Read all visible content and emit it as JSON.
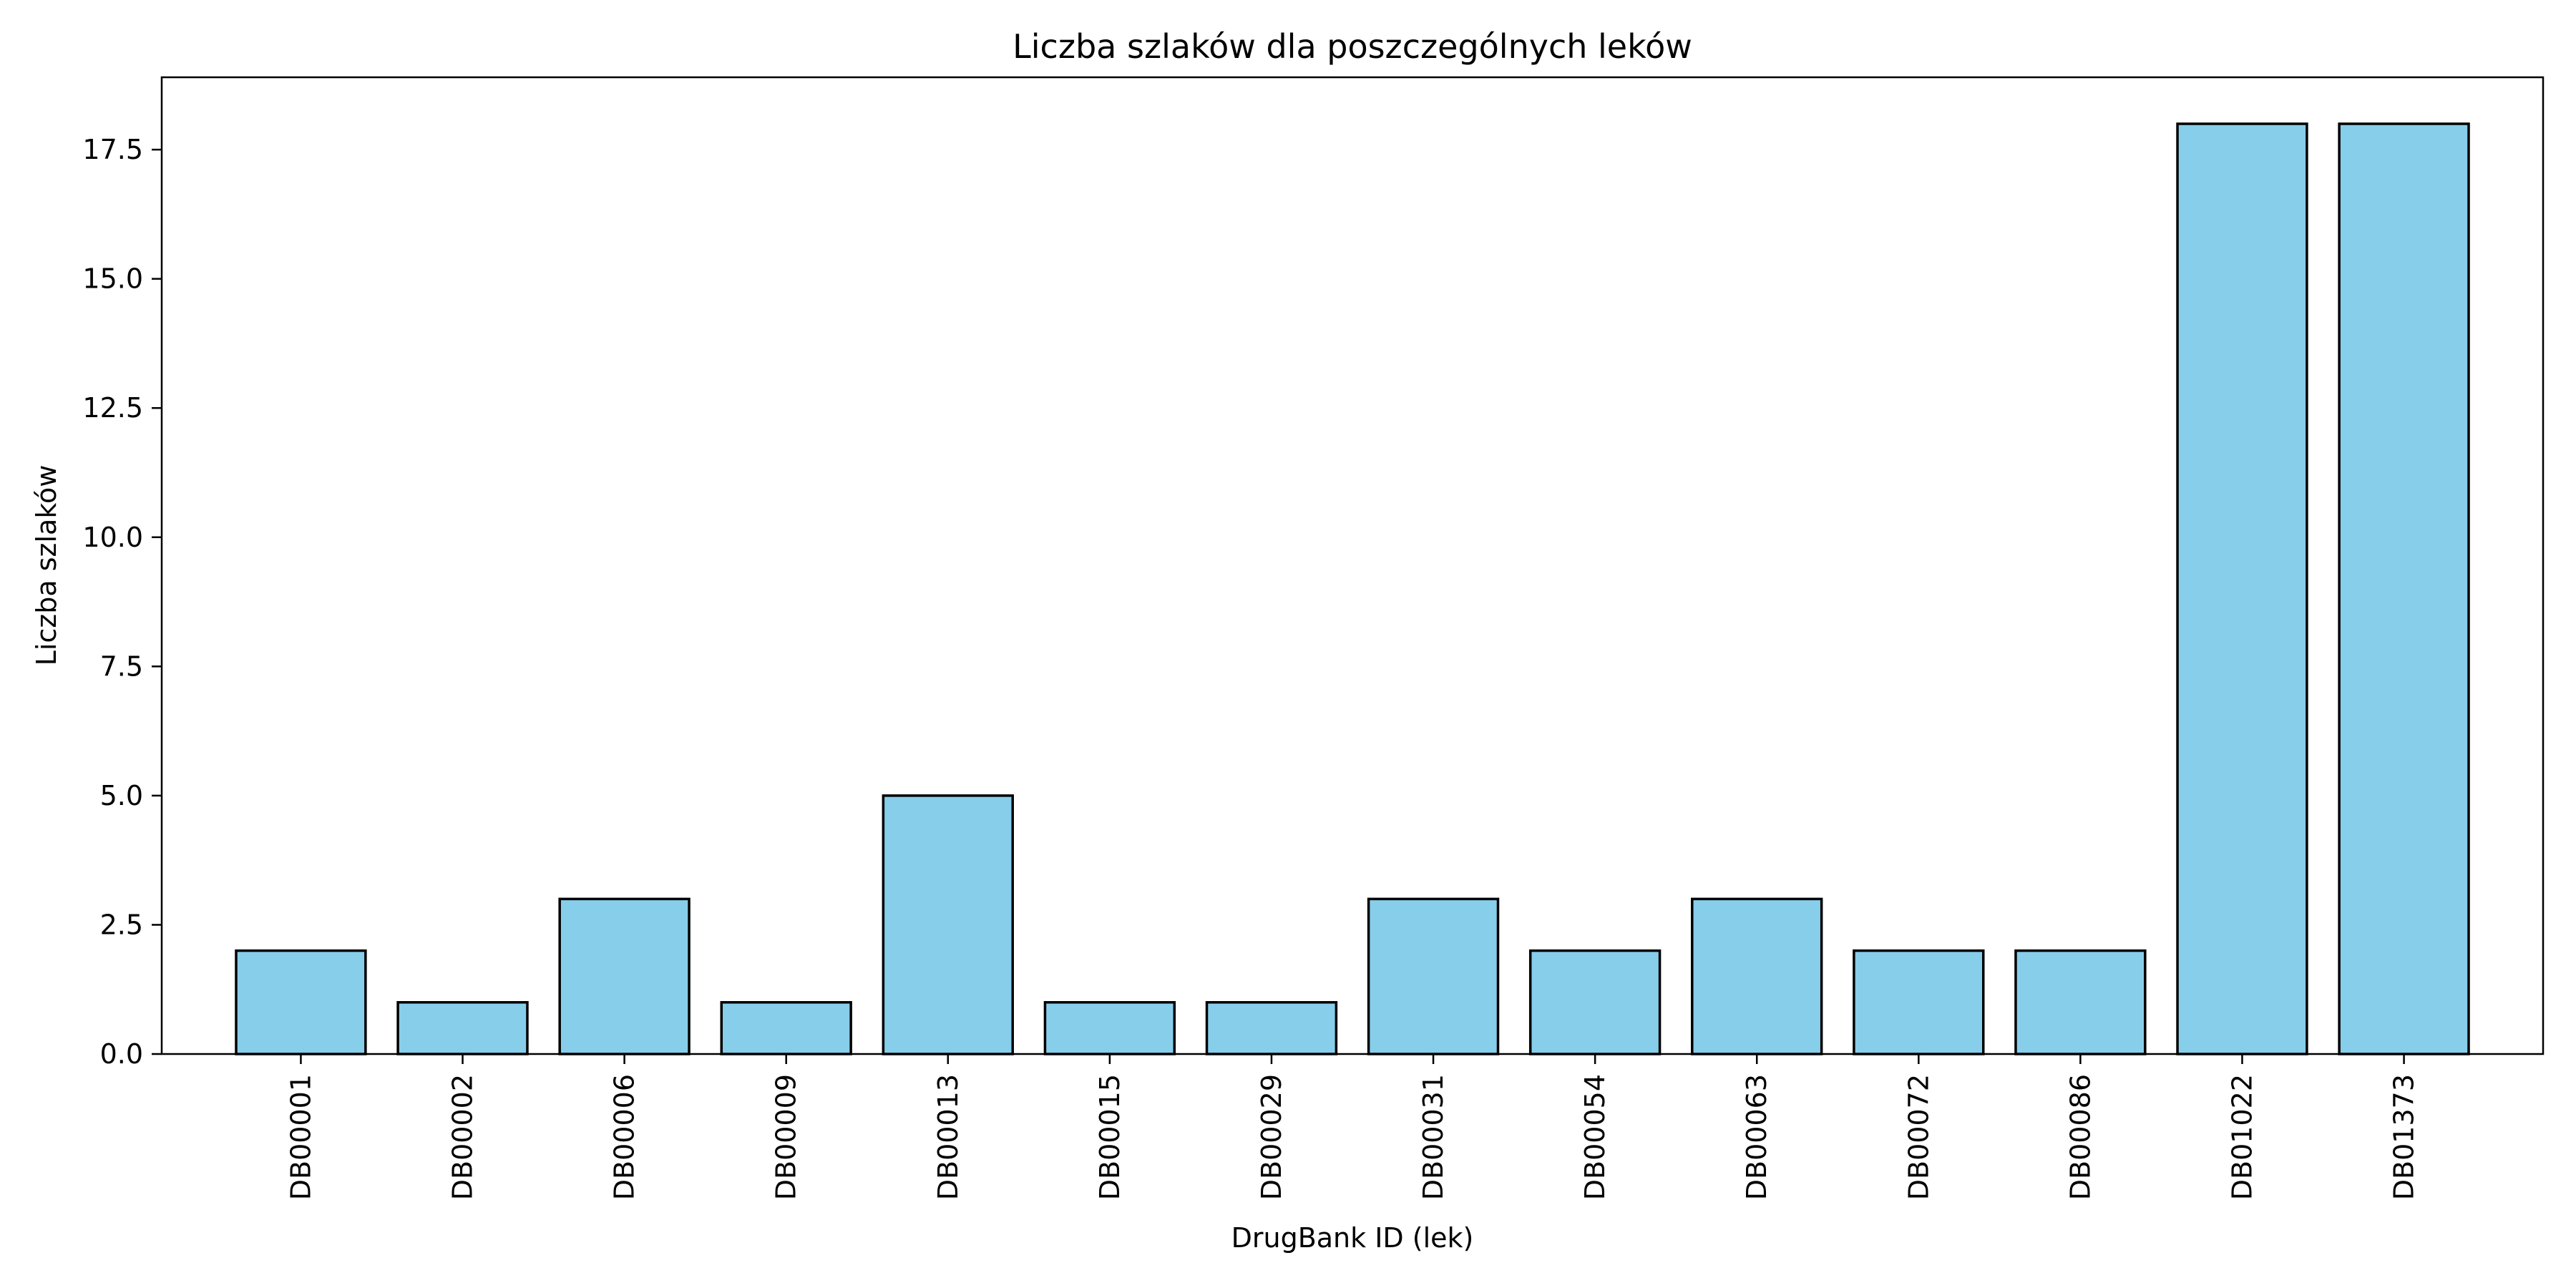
{
  "chart_data": {
    "type": "bar",
    "title": "Liczba szlaków dla poszczególnych leków",
    "xlabel": "DrugBank ID (lek)",
    "ylabel": "Liczba szlaków",
    "categories": [
      "DB00001",
      "DB00002",
      "DB00006",
      "DB00009",
      "DB00013",
      "DB00015",
      "DB00029",
      "DB00031",
      "DB00054",
      "DB00063",
      "DB00072",
      "DB00086",
      "DB01022",
      "DB01373"
    ],
    "values": [
      2,
      1,
      3,
      1,
      5,
      1,
      1,
      3,
      2,
      3,
      2,
      2,
      18,
      18
    ],
    "ylim": [
      0,
      18.9
    ],
    "yticks": [
      0.0,
      2.5,
      5.0,
      7.5,
      10.0,
      12.5,
      15.0,
      17.5
    ],
    "ytick_labels": [
      "0.0",
      "2.5",
      "5.0",
      "7.5",
      "10.0",
      "12.5",
      "15.0",
      "17.5"
    ],
    "bar_color": "#87CEEB",
    "edge_color": "#000000",
    "grid": false,
    "legend": "none"
  }
}
